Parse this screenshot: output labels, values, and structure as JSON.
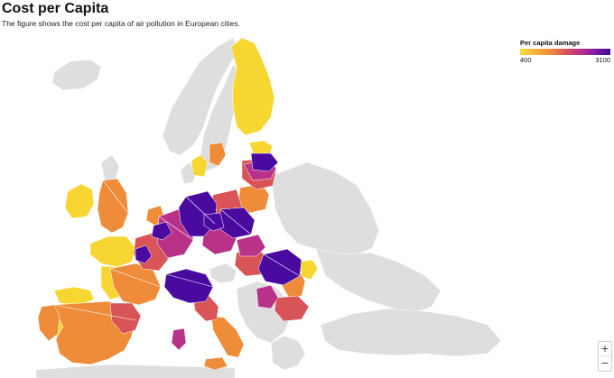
{
  "header": {
    "title": "Cost per Capita",
    "subtitle": "The figure shows the cost per capita of air pollution in European cities."
  },
  "legend": {
    "title": "Per capita damage",
    "min_label": "400",
    "max_label": "3100",
    "color_low": "#f7e13d",
    "color_high": "#3b0a96"
  },
  "map_colors": {
    "no_data": "#dedede",
    "yellow": "#f8d631",
    "light_orange": "#f5b041",
    "orange": "#ee8c3a",
    "red": "#d95457",
    "magenta": "#b8328a",
    "purple": "#7e1aa5",
    "deep_purple": "#4a0aa0"
  },
  "controls": {
    "zoom_in_label": "+",
    "zoom_out_label": "−"
  }
}
